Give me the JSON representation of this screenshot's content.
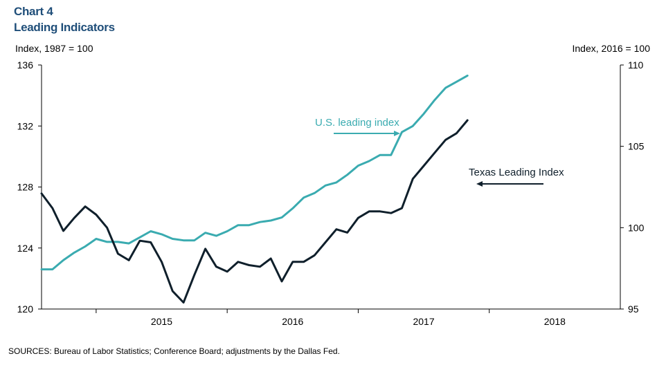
{
  "header": {
    "chart_number": "Chart 4",
    "title": "Leading Indicators"
  },
  "source_note": "SOURCES: Bureau of Labor Statistics; Conference Board; adjustments by the Dallas Fed.",
  "colors": {
    "us_series": "#3aabb0",
    "texas_series": "#0f1f2b",
    "title": "#1f4e79",
    "axis": "#000000"
  },
  "chart_data": {
    "type": "line",
    "title": "Leading Indicators",
    "left_axis": {
      "label": "Index, 1987 = 100",
      "ylim": [
        120,
        136
      ],
      "ticks": [
        "120",
        "124",
        "128",
        "132",
        "136"
      ]
    },
    "right_axis": {
      "label": "Index, 2016 = 100",
      "ylim": [
        95,
        110
      ],
      "ticks": [
        "95",
        "100",
        "105",
        "110"
      ]
    },
    "x_axis": {
      "range": [
        "2014-08",
        "2018-12"
      ],
      "year_labels": [
        "2015",
        "2016",
        "2017",
        "2018"
      ]
    },
    "grid": false,
    "series": [
      {
        "name": "U.S. leading index",
        "axis": "left",
        "start": "2014-08",
        "values": [
          122.6,
          122.6,
          123.2,
          123.7,
          124.1,
          124.6,
          124.4,
          124.4,
          124.3,
          124.7,
          125.1,
          124.9,
          124.6,
          124.5,
          124.5,
          125.0,
          124.8,
          125.1,
          125.5,
          125.5,
          125.7,
          125.8,
          126.0,
          126.6,
          127.3,
          127.6,
          128.1,
          128.3,
          128.8,
          129.4,
          129.7,
          130.1,
          130.1,
          131.6,
          132.0,
          132.8,
          133.7,
          134.5,
          134.9,
          135.3
        ]
      },
      {
        "name": "Texas Leading Index",
        "axis": "right",
        "start": "2014-08",
        "values": [
          102.1,
          101.2,
          99.8,
          100.6,
          101.3,
          100.8,
          100.0,
          98.4,
          98.0,
          99.2,
          99.1,
          97.9,
          96.1,
          95.4,
          97.1,
          98.7,
          97.6,
          97.3,
          97.9,
          97.7,
          97.6,
          98.1,
          96.7,
          97.9,
          97.9,
          98.3,
          99.1,
          99.9,
          99.7,
          100.6,
          101.0,
          101.0,
          100.9,
          101.2,
          103.0,
          103.8,
          104.6,
          105.4,
          105.8,
          106.6
        ]
      }
    ],
    "annotations": [
      {
        "text": "U.S. leading index",
        "series": "U.S. leading index",
        "arrow": "right"
      },
      {
        "text": "Texas Leading Index",
        "series": "Texas Leading Index",
        "arrow": "left"
      }
    ]
  }
}
